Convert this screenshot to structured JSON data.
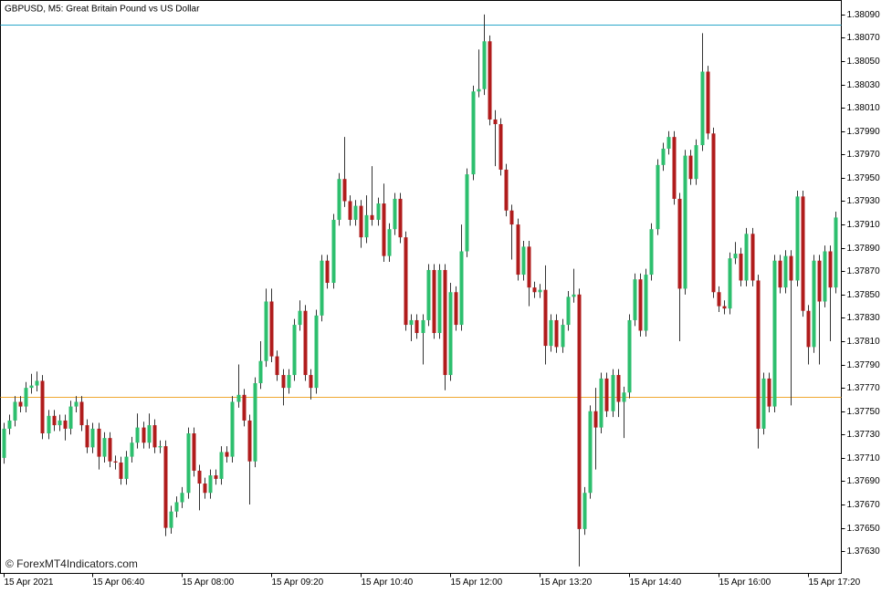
{
  "chart_data": {
    "type": "candlestick",
    "title": "GBPUSD, M5:  Great Britain Pound vs US Dollar",
    "watermark": "© ForexMT4Indicators.com",
    "up_color": "#2dbf6e",
    "down_color": "#b01c1c",
    "wick_color": "#333333",
    "xlim": [
      -0.5,
      150
    ],
    "xticks": [
      {
        "value": 0,
        "label": "15 Apr 2021"
      },
      {
        "value": 16,
        "label": "15 Apr 06:40"
      },
      {
        "value": 32,
        "label": "15 Apr 08:00"
      },
      {
        "value": 48,
        "label": "15 Apr 09:20"
      },
      {
        "value": 64,
        "label": "15 Apr 10:40"
      },
      {
        "value": 80,
        "label": "15 Apr 12:00"
      },
      {
        "value": 96,
        "label": "15 Apr 13:20"
      },
      {
        "value": 112,
        "label": "15 Apr 14:40"
      },
      {
        "value": 128,
        "label": "15 Apr 16:00"
      },
      {
        "value": 144,
        "label": "15 Apr 17:20"
      }
    ],
    "ylim": [
      1.37611,
      1.38102
    ],
    "yticks": [
      {
        "value": 1.3809,
        "label": "1.38090"
      },
      {
        "value": 1.3807,
        "label": "1.38070"
      },
      {
        "value": 1.3805,
        "label": "1.38050"
      },
      {
        "value": 1.3803,
        "label": "1.38030"
      },
      {
        "value": 1.3801,
        "label": "1.38010"
      },
      {
        "value": 1.3799,
        "label": "1.37990"
      },
      {
        "value": 1.3797,
        "label": "1.37970"
      },
      {
        "value": 1.3795,
        "label": "1.37950"
      },
      {
        "value": 1.3793,
        "label": "1.37930"
      },
      {
        "value": 1.3791,
        "label": "1.37910"
      },
      {
        "value": 1.3789,
        "label": "1.37890"
      },
      {
        "value": 1.3787,
        "label": "1.37870"
      },
      {
        "value": 1.3785,
        "label": "1.37850"
      },
      {
        "value": 1.3783,
        "label": "1.37830"
      },
      {
        "value": 1.3781,
        "label": "1.37810"
      },
      {
        "value": 1.3779,
        "label": "1.37790"
      },
      {
        "value": 1.3777,
        "label": "1.37770"
      },
      {
        "value": 1.3775,
        "label": "1.37750"
      },
      {
        "value": 1.3773,
        "label": "1.37730"
      },
      {
        "value": 1.3771,
        "label": "1.37710"
      },
      {
        "value": 1.3769,
        "label": "1.37690"
      },
      {
        "value": 1.3767,
        "label": "1.37670"
      },
      {
        "value": 1.3765,
        "label": "1.37650"
      },
      {
        "value": 1.3763,
        "label": "1.37630"
      }
    ],
    "reference_lines": [
      {
        "value": 1.38081,
        "color": "#2aa7c9"
      },
      {
        "value": 1.37762,
        "color": "#f0a830"
      }
    ],
    "open": [
      1.3771,
      1.37735,
      1.37742,
      1.37758,
      1.37754,
      1.3777,
      1.37772,
      1.37776,
      1.37731,
      1.37746,
      1.37738,
      1.37742,
      1.37735,
      1.37754,
      1.37758,
      1.37738,
      1.37719,
      1.37735,
      1.37711,
      1.37727,
      1.37707,
      1.37706,
      1.37692,
      1.37711,
      1.37723,
      1.37736,
      1.37723,
      1.37738,
      1.37719,
      1.3772,
      1.3765,
      1.37664,
      1.37672,
      1.3768,
      1.37731,
      1.37699,
      1.37688,
      1.3768,
      1.37695,
      1.37692,
      1.37715,
      1.37711,
      1.37758,
      1.37764,
      1.37742,
      1.37707,
      1.37774,
      1.37793,
      1.37844,
      1.37797,
      1.37781,
      1.3777,
      1.37781,
      1.37824,
      1.37836,
      1.37781,
      1.3777,
      1.37832,
      1.37879,
      1.3786,
      1.37914,
      1.37949,
      1.3793,
      1.37914,
      1.37926,
      1.37899,
      1.37918,
      1.37914,
      1.37928,
      1.37883,
      1.37906,
      1.37932,
      1.37899,
      1.37824,
      1.37828,
      1.37817,
      1.37828,
      1.37871,
      1.37817,
      1.37871,
      1.37781,
      1.37852,
      1.37824,
      1.37887,
      1.37953,
      1.38024,
      1.38026,
      1.38067,
      1.38,
      1.37996,
      1.37957,
      1.37922,
      1.3791,
      1.37867,
      1.37891,
      1.37856,
      1.37852,
      1.37854,
      1.37806,
      1.37828,
      1.37805,
      1.37824,
      1.37848,
      1.3785,
      1.37649,
      1.3768,
      1.3775,
      1.37736,
      1.37778,
      1.3775,
      1.37781,
      1.37758,
      1.37766,
      1.37828,
      1.37863,
      1.37819,
      1.37867,
      1.37906,
      1.37961,
      1.37975,
      1.37985,
      1.37932,
      1.37855,
      1.37969,
      1.37949,
      1.37978,
      1.38041,
      1.37988,
      1.37852,
      1.3784,
      1.37838,
      1.37881,
      1.37885,
      1.37862,
      1.37902,
      1.37862,
      1.37735,
      1.37778,
      1.37754,
      1.37879,
      1.37856,
      1.37883,
      1.37862,
      1.37934,
      1.37836,
      1.37805,
      1.37879,
      1.37844,
      1.37887,
      1.37856
    ],
    "high": [
      1.3774,
      1.37747,
      1.37763,
      1.37763,
      1.37775,
      1.37782,
      1.37784,
      1.37781,
      1.37751,
      1.37751,
      1.37747,
      1.37747,
      1.37759,
      1.37763,
      1.37763,
      1.37743,
      1.3774,
      1.3774,
      1.37732,
      1.37732,
      1.37712,
      1.37711,
      1.37716,
      1.37728,
      1.37748,
      1.37741,
      1.37748,
      1.37743,
      1.37725,
      1.37725,
      1.37669,
      1.37677,
      1.37685,
      1.37736,
      1.37736,
      1.37704,
      1.37693,
      1.377,
      1.377,
      1.3772,
      1.3772,
      1.37763,
      1.3779,
      1.37769,
      1.37747,
      1.37779,
      1.3781,
      1.37855,
      1.37855,
      1.37802,
      1.37786,
      1.37786,
      1.37829,
      1.37845,
      1.37841,
      1.37786,
      1.37837,
      1.37884,
      1.37884,
      1.37919,
      1.37954,
      1.37985,
      1.37935,
      1.37931,
      1.37931,
      1.37935,
      1.3796,
      1.37933,
      1.37945,
      1.37911,
      1.37937,
      1.37937,
      1.37904,
      1.37833,
      1.37833,
      1.37833,
      1.37876,
      1.37876,
      1.37876,
      1.37876,
      1.3786,
      1.37857,
      1.3791,
      1.37958,
      1.38029,
      1.3806,
      1.3809,
      1.38072,
      1.38008,
      1.38001,
      1.37962,
      1.37927,
      1.37915,
      1.37896,
      1.37896,
      1.37861,
      1.37859,
      1.37875,
      1.37833,
      1.37833,
      1.37829,
      1.37853,
      1.37872,
      1.37855,
      1.37685,
      1.37755,
      1.3777,
      1.37783,
      1.37783,
      1.37786,
      1.37786,
      1.37771,
      1.37833,
      1.37868,
      1.37868,
      1.37872,
      1.37911,
      1.37966,
      1.3798,
      1.3799,
      1.3799,
      1.37937,
      1.37974,
      1.37974,
      1.37983,
      1.38074,
      1.38046,
      1.37993,
      1.37857,
      1.37845,
      1.37886,
      1.37895,
      1.3789,
      1.37907,
      1.37907,
      1.37867,
      1.37783,
      1.37783,
      1.37884,
      1.37884,
      1.37888,
      1.37888,
      1.37939,
      1.37939,
      1.37841,
      1.37884,
      1.37884,
      1.37892,
      1.37892,
      1.37921
    ],
    "low": [
      1.37705,
      1.3773,
      1.37737,
      1.37749,
      1.37749,
      1.37765,
      1.37767,
      1.37726,
      1.37726,
      1.37733,
      1.37733,
      1.37725,
      1.3773,
      1.37749,
      1.37733,
      1.37714,
      1.37714,
      1.377,
      1.37706,
      1.37702,
      1.377,
      1.37687,
      1.37687,
      1.37706,
      1.37718,
      1.37718,
      1.37718,
      1.37714,
      1.37714,
      1.37643,
      1.37645,
      1.37659,
      1.37667,
      1.37675,
      1.37694,
      1.37665,
      1.37675,
      1.37675,
      1.37687,
      1.37687,
      1.37706,
      1.37706,
      1.37753,
      1.37737,
      1.3767,
      1.37702,
      1.37769,
      1.37788,
      1.37792,
      1.37776,
      1.37755,
      1.37765,
      1.37776,
      1.37819,
      1.37776,
      1.3776,
      1.37765,
      1.37827,
      1.37855,
      1.37855,
      1.37909,
      1.37925,
      1.37909,
      1.37909,
      1.3789,
      1.37894,
      1.37909,
      1.37909,
      1.37878,
      1.37878,
      1.37901,
      1.37894,
      1.37819,
      1.3781,
      1.37812,
      1.3779,
      1.37823,
      1.37812,
      1.37812,
      1.37768,
      1.37776,
      1.37819,
      1.37819,
      1.37882,
      1.37948,
      1.38019,
      1.38021,
      1.37995,
      1.3796,
      1.37952,
      1.37917,
      1.3788,
      1.37862,
      1.37862,
      1.3784,
      1.37847,
      1.37847,
      1.3779,
      1.37801,
      1.378,
      1.378,
      1.37819,
      1.37843,
      1.37617,
      1.37644,
      1.37675,
      1.377,
      1.37731,
      1.37745,
      1.37745,
      1.37745,
      1.37727,
      1.37761,
      1.37823,
      1.37814,
      1.37814,
      1.37862,
      1.37901,
      1.37956,
      1.3797,
      1.37927,
      1.3781,
      1.3785,
      1.37944,
      1.37944,
      1.37973,
      1.37983,
      1.37847,
      1.37835,
      1.37833,
      1.37833,
      1.37876,
      1.37857,
      1.37857,
      1.37857,
      1.37718,
      1.3773,
      1.37749,
      1.37749,
      1.37851,
      1.37851,
      1.37755,
      1.37857,
      1.37831,
      1.3779,
      1.378,
      1.3779,
      1.37839,
      1.3781,
      1.37851
    ],
    "close": [
      1.37735,
      1.37742,
      1.37758,
      1.37754,
      1.3777,
      1.37772,
      1.37776,
      1.37731,
      1.37746,
      1.37738,
      1.37742,
      1.37735,
      1.37754,
      1.37758,
      1.37738,
      1.37719,
      1.37735,
      1.37711,
      1.37727,
      1.37707,
      1.37706,
      1.37692,
      1.37711,
      1.37723,
      1.37736,
      1.37723,
      1.37738,
      1.37719,
      1.3772,
      1.3765,
      1.37664,
      1.37672,
      1.3768,
      1.37731,
      1.37699,
      1.37688,
      1.3768,
      1.37695,
      1.37692,
      1.37715,
      1.37711,
      1.37758,
      1.37764,
      1.37742,
      1.37707,
      1.37774,
      1.37793,
      1.37844,
      1.37797,
      1.37781,
      1.3777,
      1.37781,
      1.37824,
      1.37836,
      1.37781,
      1.3777,
      1.37832,
      1.37879,
      1.3786,
      1.37914,
      1.37949,
      1.3793,
      1.37914,
      1.37926,
      1.37899,
      1.37918,
      1.37914,
      1.37928,
      1.37883,
      1.37906,
      1.37932,
      1.37899,
      1.37824,
      1.37828,
      1.37817,
      1.37828,
      1.37871,
      1.37817,
      1.37871,
      1.37781,
      1.37852,
      1.37824,
      1.37887,
      1.37953,
      1.38024,
      1.38026,
      1.38067,
      1.38,
      1.37996,
      1.37957,
      1.37922,
      1.3791,
      1.37867,
      1.37891,
      1.37856,
      1.37852,
      1.37854,
      1.37806,
      1.37828,
      1.37805,
      1.37824,
      1.37848,
      1.3785,
      1.37649,
      1.3768,
      1.3775,
      1.37736,
      1.37778,
      1.3775,
      1.37781,
      1.37758,
      1.37766,
      1.37828,
      1.37863,
      1.37819,
      1.37867,
      1.37906,
      1.37961,
      1.37975,
      1.37985,
      1.37932,
      1.37855,
      1.37969,
      1.37949,
      1.37978,
      1.38041,
      1.37988,
      1.37852,
      1.3784,
      1.37838,
      1.37881,
      1.37885,
      1.37862,
      1.37902,
      1.37862,
      1.37735,
      1.37778,
      1.37754,
      1.37879,
      1.37856,
      1.37883,
      1.37862,
      1.37934,
      1.37836,
      1.37805,
      1.37879,
      1.37844,
      1.37887,
      1.37856,
      1.37916
    ]
  }
}
